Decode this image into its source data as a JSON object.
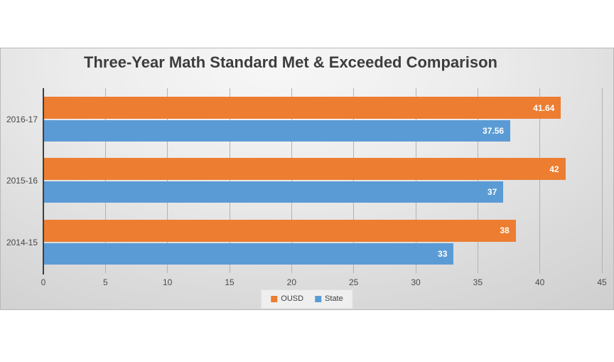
{
  "chart_data": {
    "type": "bar",
    "orientation": "horizontal",
    "title": "Three-Year Math Standard Met & Exceeded Comparison",
    "categories": [
      "2016-17",
      "2015-16",
      "2014-15"
    ],
    "series": [
      {
        "name": "OUSD",
        "color": "#ED7D31",
        "values": [
          41.64,
          42,
          38
        ],
        "labels": [
          "41.64",
          "42",
          "38"
        ]
      },
      {
        "name": "State",
        "color": "#5B9BD5",
        "values": [
          37.56,
          37,
          33
        ],
        "labels": [
          "37.56",
          "37",
          "33"
        ]
      }
    ],
    "xlim": [
      0,
      45
    ],
    "x_ticks": [
      0,
      5,
      10,
      15,
      20,
      25,
      30,
      35,
      40,
      45
    ],
    "grid": true,
    "legend_position": "bottom-center",
    "plot_bg": "gray-gradient",
    "title_color": "#3d3d3d",
    "axis_label_color": "#4a4a4a",
    "gridline_color": "#b2b2b2",
    "value_label_color": "#ffffff"
  }
}
